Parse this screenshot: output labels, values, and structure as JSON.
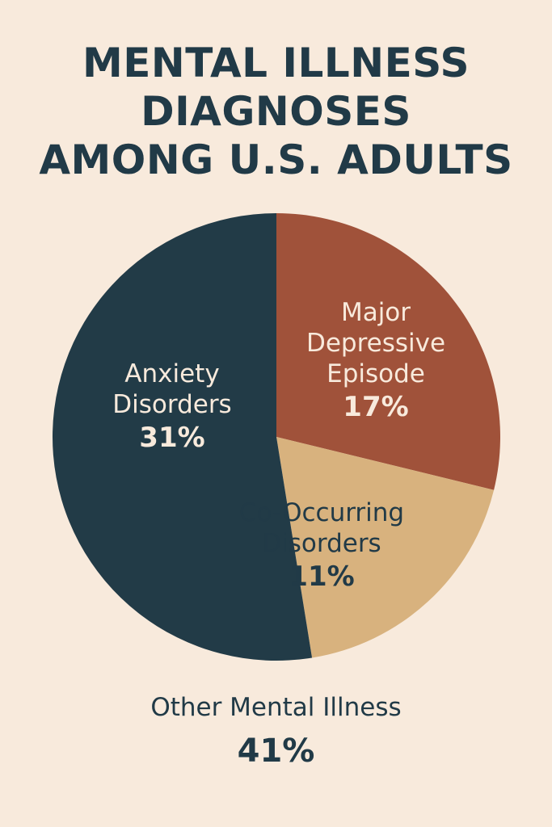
{
  "title_lines": [
    "MENTAL ILLNESS",
    "DIAGNOSES",
    "AMONG U.S. ADULTS"
  ],
  "chart_data": {
    "type": "pie",
    "title": "MENTAL ILLNESS DIAGNOSES AMONG U.S. ADULTS",
    "slices": [
      {
        "label_lines": [
          "Major",
          "Depressive",
          "Episode"
        ],
        "value": 17,
        "value_label": "17%",
        "color": "#a0523a",
        "text_color": "#f8eadc"
      },
      {
        "label_lines": [
          "Co-Occurring",
          "Disorders"
        ],
        "value": 11,
        "value_label": "11%",
        "color": "#d8b27e",
        "text_color": "#213a47"
      },
      {
        "label_lines": [
          "Anxiety",
          "Disorders"
        ],
        "value": 31,
        "value_label": "31%",
        "color": "#223b47",
        "text_color": "#f8eadc"
      }
    ],
    "outside_entry": {
      "label": "Other Mental Illness",
      "value": 41,
      "value_label": "41%"
    },
    "background_color": "#f8eadc",
    "text_color": "#213a47"
  }
}
